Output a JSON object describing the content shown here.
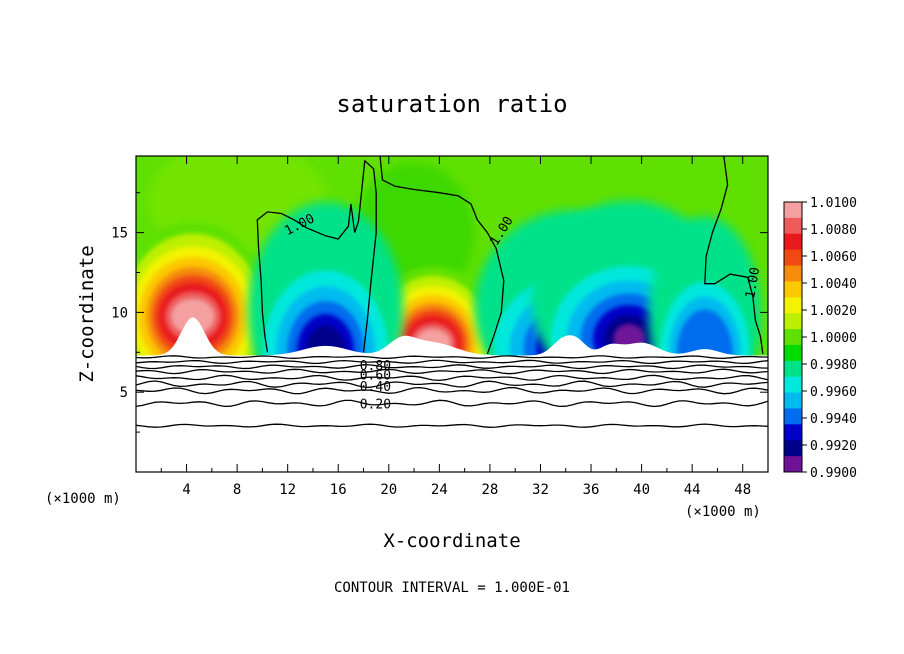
{
  "chart_data": {
    "type": "heatmap",
    "title": "saturation ratio",
    "xlabel": "X-coordinate",
    "ylabel": "Z-coordinate",
    "x_unit_left": "(×1000 m)",
    "x_unit_right": "(×1000 m)",
    "xlim": [
      0,
      50
    ],
    "ylim": [
      0,
      19.8
    ],
    "x_ticks": [
      4,
      8,
      12,
      16,
      20,
      24,
      28,
      32,
      36,
      40,
      44,
      48
    ],
    "y_ticks": [
      5,
      10,
      15
    ],
    "colorbar": {
      "levels": [
        "1.0100",
        "1.0080",
        "1.0060",
        "1.0040",
        "1.0020",
        "1.0000",
        "0.9980",
        "0.9960",
        "0.9940",
        "0.9920",
        "0.9900"
      ],
      "colors": [
        "#f4a0a0",
        "#ee5b5b",
        "#e8191c",
        "#f04a12",
        "#f68c0c",
        "#fcc800",
        "#f3f300",
        "#bdf000",
        "#5fe100",
        "#00dc00",
        "#00e28a",
        "#00e8dc",
        "#00bbef",
        "#006cee",
        "#0000c8",
        "#00008a",
        "#701298"
      ]
    },
    "contour_labels": [
      "1.00",
      "1.00",
      "1.00",
      "0.80",
      "0.60",
      "0.40",
      "0.20"
    ],
    "contour_interval_label": "CONTOUR INTERVAL = 1.000E-01",
    "field": {
      "terrain_top_z": 7.3,
      "moist_lobes": [
        {
          "x": 4.5,
          "z": 10.5,
          "peak": 1.01
        },
        {
          "x": 23.5,
          "z": 8.8,
          "peak": 1.008
        }
      ],
      "dry_lobes": [
        {
          "x": 15,
          "z": 8.2,
          "min": 0.992
        },
        {
          "x": 34.5,
          "z": 8.4,
          "min": 0.9905
        },
        {
          "x": 39,
          "z": 9.0,
          "min": 0.991
        },
        {
          "x": 45,
          "z": 8.0,
          "min": 0.995
        }
      ]
    }
  }
}
